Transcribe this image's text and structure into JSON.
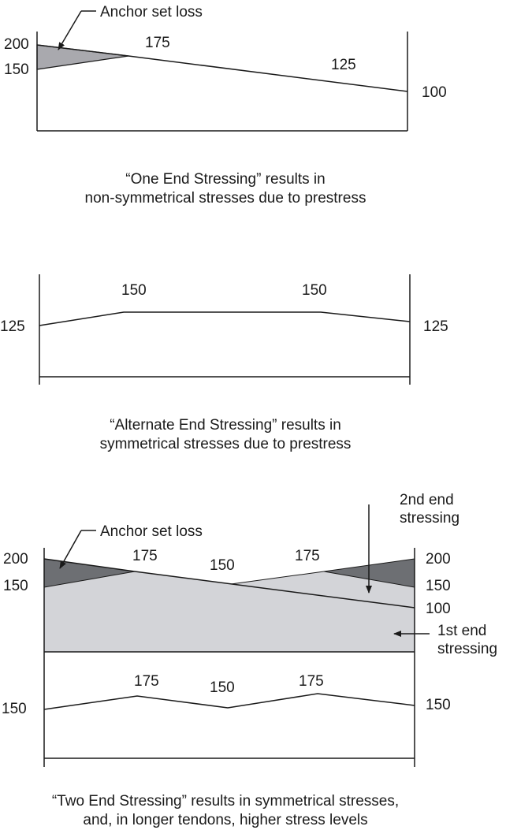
{
  "diagram1": {
    "callout": "Anchor set loss",
    "labels": [
      "200",
      "150",
      "175",
      "125",
      "100"
    ],
    "caption": [
      "“One End Stressing” results in",
      "non-symmetrical stresses due to prestress"
    ]
  },
  "diagram2": {
    "labels": [
      "125",
      "150",
      "150",
      "125"
    ],
    "caption": [
      "“Alternate End Stressing” results in",
      "symmetrical stresses due to prestress"
    ]
  },
  "diagram3": {
    "callout": "Anchor set loss",
    "second_end": [
      "2nd end",
      "stressing"
    ],
    "first_end": [
      "1st end",
      "stressing"
    ],
    "labels": [
      "200",
      "150",
      "175",
      "150",
      "175",
      "200",
      "150",
      "100"
    ],
    "lower_labels": [
      "150",
      "175",
      "150",
      "175",
      "150"
    ],
    "caption": [
      "“Two End Stressing” results in symmetrical stresses,",
      "and, in longer tendons, higher stress levels"
    ]
  },
  "colors": {
    "loss_light": "#a9a9ae",
    "loss_dark": "#6d6f73",
    "fill_light": "#d3d4d8"
  }
}
